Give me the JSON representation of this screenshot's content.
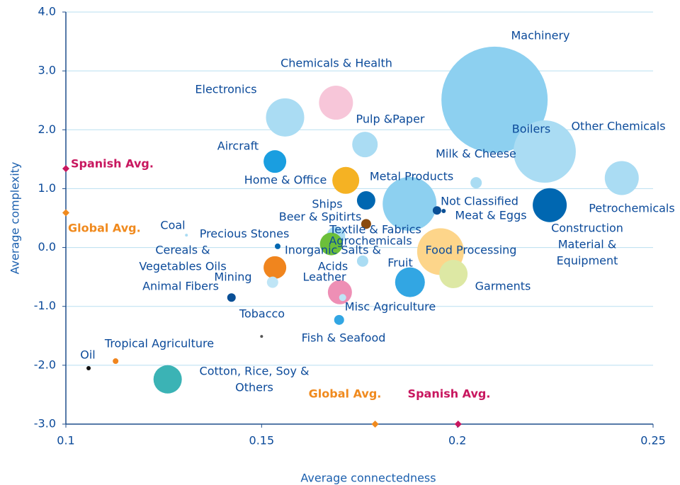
{
  "chart_data": {
    "type": "bubble",
    "x_label": "Average connectedness",
    "y_label": "Average complexity",
    "xlim": [
      0.1,
      0.25
    ],
    "ylim": [
      -3,
      4
    ],
    "xticks": [
      0.1,
      0.15,
      0.2,
      0.25
    ],
    "yticks": [
      {
        "value": 4,
        "label": "4.0"
      },
      {
        "value": 3,
        "label": "3.0"
      },
      {
        "value": 2,
        "label": "2.0"
      },
      {
        "value": 1,
        "label": "1.0"
      },
      {
        "value": 0,
        "label": "0.0"
      },
      {
        "value": -1,
        "label": "-1.0"
      },
      {
        "value": -2,
        "label": "-2.0"
      },
      {
        "value": -3,
        "label": "-3.0"
      }
    ],
    "grid": true,
    "points": [
      {
        "label": [
          "Machinery"
        ],
        "x": 0.2095,
        "y": 2.51,
        "size": 75,
        "color": "#8dd0f0"
      },
      {
        "label": [
          "Chemicals & Health"
        ],
        "x": 0.169,
        "y": 2.46,
        "size": 24,
        "color": "#f7c6d9"
      },
      {
        "label": [
          "Electronics"
        ],
        "x": 0.156,
        "y": 2.21,
        "size": 27,
        "color": "#aadcf3"
      },
      {
        "label": [
          "Pulp &Paper"
        ],
        "x": 0.1764,
        "y": 1.75,
        "size": 18,
        "color": "#aadcf3"
      },
      {
        "label": [
          "Boilers"
        ],
        "x": 0.2223,
        "y": 1.63,
        "size": 44,
        "color": "#aadcf3"
      },
      {
        "label": [
          "Other Chemicals"
        ],
        "x": 0.2203,
        "y": 1.82,
        "size": 3,
        "color": "#aadcf3"
      },
      {
        "label": [
          "Aircraft"
        ],
        "x": 0.1534,
        "y": 1.46,
        "size": 16,
        "color": "#1a9ee0"
      },
      {
        "label": [
          "Home & Office"
        ],
        "x": 0.1715,
        "y": 1.14,
        "size": 19,
        "color": "#f5b223"
      },
      {
        "label": [
          "Milk & Cheese"
        ],
        "x": 0.2048,
        "y": 1.1,
        "size": 8,
        "color": "#aadcf3"
      },
      {
        "label": [
          "Ships"
        ],
        "x": 0.1767,
        "y": 0.8,
        "size": 13,
        "color": "#0067b1"
      },
      {
        "label": [
          "Metal Products"
        ],
        "x": 0.1878,
        "y": 0.74,
        "size": 38,
        "color": "#8dd0f0"
      },
      {
        "label": [
          "Not Classified"
        ],
        "x": 0.1948,
        "y": 0.63,
        "size": 6,
        "color": "#0a4f96"
      },
      {
        "label": [
          "Construction",
          "Material &",
          "Equipment"
        ],
        "x": 0.2236,
        "y": 0.72,
        "size": 24,
        "color": "#0067b1"
      },
      {
        "label": [
          "Meat & Eggs"
        ],
        "x": 0.1965,
        "y": 0.62,
        "size": 3,
        "color": "#0a4f96"
      },
      {
        "label": [
          "Beer & Spitirts"
        ],
        "x": 0.1767,
        "y": 0.4,
        "size": 7,
        "color": "#8a4b0f"
      },
      {
        "label": [
          "Textile & Fabrics"
        ],
        "x": 0.169,
        "y": 0.2,
        "size": 13,
        "color": "#aadcf3"
      },
      {
        "label": [
          "Agrochemicals"
        ],
        "x": 0.1678,
        "y": 0.06,
        "size": 16,
        "color": "#6cbf3a"
      },
      {
        "label": [
          "Coal"
        ],
        "x": 0.1308,
        "y": 0.21,
        "size": 2,
        "color": "#aadcf3"
      },
      {
        "label": [
          "Precious Stones"
        ],
        "x": 0.1541,
        "y": 0.02,
        "size": 4,
        "color": "#0067b1"
      },
      {
        "label": [
          "Food Processing"
        ],
        "x": 0.1957,
        "y": -0.07,
        "size": 33,
        "color": "#fdd58a"
      },
      {
        "label": [
          "Inorganic Salts &",
          "Acids"
        ],
        "x": 0.1758,
        "y": -0.23,
        "size": 8,
        "color": "#aadcf3"
      },
      {
        "label": [
          "Cereals &",
          "Vegetables Oils"
        ],
        "x": 0.1534,
        "y": -0.34,
        "size": 16,
        "color": "#f0851e"
      },
      {
        "label": [
          "Garments"
        ],
        "x": 0.199,
        "y": -0.45,
        "size": 20,
        "color": "#dde8a4"
      },
      {
        "label": [
          "Mining"
        ],
        "x": 0.1528,
        "y": -0.59,
        "size": 8,
        "color": "#bfe5f6"
      },
      {
        "label": [
          "Fruit"
        ],
        "x": 0.1879,
        "y": -0.59,
        "size": 21,
        "color": "#32a6e3"
      },
      {
        "label": [
          "Leather"
        ],
        "x": 0.17,
        "y": -0.76,
        "size": 17,
        "color": "#ee8fb5"
      },
      {
        "label": [
          "Animal Fibers"
        ],
        "x": 0.1423,
        "y": -0.85,
        "size": 6,
        "color": "#0a4f96"
      },
      {
        "label": [
          "Misc Agriculture"
        ],
        "x": 0.1707,
        "y": -0.85,
        "size": 5,
        "color": "#bfe5f6"
      },
      {
        "label": [
          "Fish & Seafood"
        ],
        "x": 0.1698,
        "y": -1.23,
        "size": 7,
        "color": "#32a6e3"
      },
      {
        "label": [
          "Tobacco"
        ],
        "x": 0.15,
        "y": -1.51,
        "size": 2,
        "color": "#555555"
      },
      {
        "label": [
          "Tropical Agriculture"
        ],
        "x": 0.1127,
        "y": -1.93,
        "size": 4,
        "color": "#f0851e"
      },
      {
        "label": [
          "Oil"
        ],
        "x": 0.1058,
        "y": -2.05,
        "size": 3,
        "color": "#111111"
      },
      {
        "label": [
          "Cotton, Rice, Soy &",
          "Others"
        ],
        "x": 0.126,
        "y": -2.24,
        "size": 20,
        "color": "#3bb3b5"
      },
      {
        "label": [
          "Petrochemicals"
        ],
        "x": 0.242,
        "y": 1.18,
        "size": 24,
        "color": "#aadcf3"
      }
    ],
    "averages": {
      "global": {
        "name": "Global Avg.",
        "x": 0.179,
        "y": 0.59,
        "color": "#f08a1e"
      },
      "spanish": {
        "name": "Spanish Avg.",
        "x": 0.2002,
        "y": 1.34,
        "color": "#c8175f"
      }
    }
  }
}
